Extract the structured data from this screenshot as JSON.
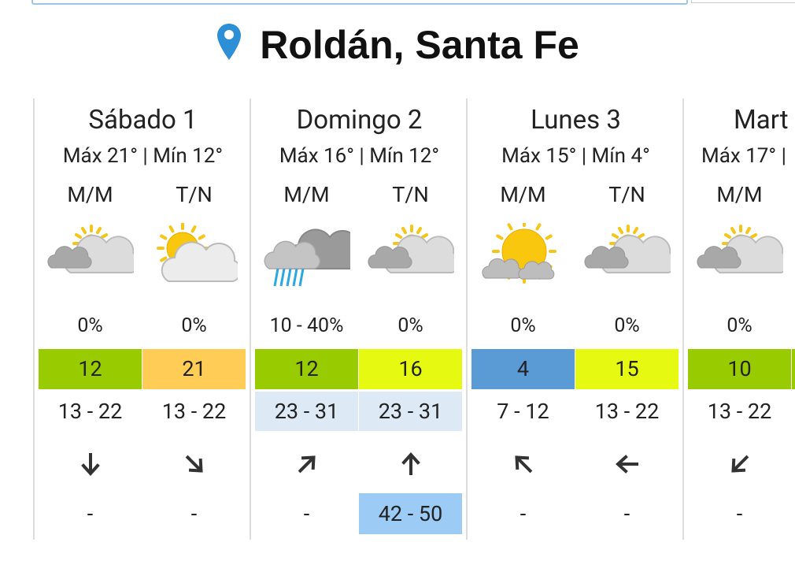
{
  "header": {
    "title": "Roldán, Santa Fe"
  },
  "days": [
    {
      "name": "Sábado 1",
      "range": "Máx 21° | Mín 12°",
      "periods": [
        {
          "label": "M/M",
          "precip": "0%",
          "temp": "12",
          "wind": "13 - 22",
          "gust": "-"
        },
        {
          "label": "T/N",
          "precip": "0%",
          "temp": "21",
          "wind": "13 - 22",
          "gust": "-"
        }
      ]
    },
    {
      "name": "Domingo 2",
      "range": "Máx 16° | Mín 12°",
      "periods": [
        {
          "label": "M/M",
          "precip": "10 - 40%",
          "temp": "12",
          "wind": "23 - 31",
          "gust": "-"
        },
        {
          "label": "T/N",
          "precip": "0%",
          "temp": "16",
          "wind": "23 - 31",
          "gust": "42 - 50"
        }
      ]
    },
    {
      "name": "Lunes 3",
      "range": "Máx 15° | Mín 4°",
      "periods": [
        {
          "label": "M/M",
          "precip": "0%",
          "temp": "4",
          "wind": "7 - 12",
          "gust": "-"
        },
        {
          "label": "T/N",
          "precip": "0%",
          "temp": "15",
          "wind": "13 - 22",
          "gust": "-"
        }
      ]
    },
    {
      "name": "Mart",
      "range": "Máx 17° |",
      "periods": [
        {
          "label": "M/M",
          "precip": "0%",
          "temp": "10",
          "wind": "13 - 22",
          "gust": "-"
        }
      ]
    }
  ]
}
